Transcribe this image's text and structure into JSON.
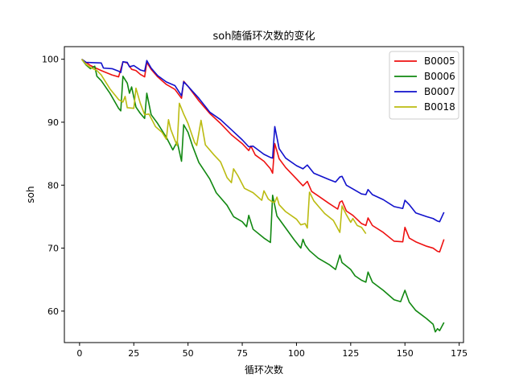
{
  "chart_data": {
    "type": "line",
    "title": "soh随循环次数的变化",
    "xlabel": "循环次数",
    "ylabel": "soh",
    "xlim": [
      -7,
      177
    ],
    "ylim": [
      55,
      102
    ],
    "xticks": [
      0,
      25,
      50,
      75,
      100,
      125,
      150,
      175
    ],
    "yticks": [
      60,
      70,
      80,
      90,
      100
    ],
    "grid": false,
    "legend_position": "top-right",
    "series": [
      {
        "name": "B0005",
        "color": "#ee1111",
        "points": [
          [
            1,
            100
          ],
          [
            5,
            99
          ],
          [
            10,
            98.2
          ],
          [
            15,
            97.5
          ],
          [
            18,
            97.2
          ],
          [
            20,
            99.6
          ],
          [
            22,
            99.4
          ],
          [
            24,
            98.4
          ],
          [
            26,
            98.2
          ],
          [
            28,
            97.6
          ],
          [
            30,
            97.2
          ],
          [
            31,
            99.5
          ],
          [
            33,
            98.4
          ],
          [
            36,
            97.2
          ],
          [
            40,
            96
          ],
          [
            44,
            95.2
          ],
          [
            47,
            93.8
          ],
          [
            48,
            96.5
          ],
          [
            50,
            95.7
          ],
          [
            55,
            93.4
          ],
          [
            60,
            91.4
          ],
          [
            65,
            89.8
          ],
          [
            70,
            88
          ],
          [
            75,
            86.6
          ],
          [
            78,
            85.5
          ],
          [
            79,
            86.2
          ],
          [
            81,
            84.8
          ],
          [
            85,
            83.8
          ],
          [
            88,
            82.6
          ],
          [
            89,
            81.9
          ],
          [
            90,
            86.6
          ],
          [
            92,
            84.2
          ],
          [
            95,
            82.8
          ],
          [
            100,
            81
          ],
          [
            103,
            79.9
          ],
          [
            105,
            80.6
          ],
          [
            107,
            79
          ],
          [
            110,
            78.3
          ],
          [
            115,
            77.1
          ],
          [
            119,
            76.2
          ],
          [
            120,
            77.3
          ],
          [
            121,
            77.5
          ],
          [
            123,
            75.9
          ],
          [
            126,
            75.2
          ],
          [
            130,
            73.9
          ],
          [
            132,
            73.6
          ],
          [
            133,
            74.8
          ],
          [
            135,
            73.6
          ],
          [
            140,
            72.5
          ],
          [
            145,
            71.1
          ],
          [
            149,
            71
          ],
          [
            150,
            73.3
          ],
          [
            152,
            71.6
          ],
          [
            155,
            71
          ],
          [
            160,
            70.3
          ],
          [
            163,
            70
          ],
          [
            165,
            69.5
          ],
          [
            166,
            69.4
          ],
          [
            168,
            71.4
          ]
        ]
      },
      {
        "name": "B0006",
        "color": "#118811",
        "points": [
          [
            1,
            100
          ],
          [
            3,
            99.1
          ],
          [
            5,
            98.5
          ],
          [
            7,
            98.9
          ],
          [
            8,
            97.3
          ],
          [
            10,
            96.6
          ],
          [
            14,
            94.6
          ],
          [
            18,
            92.2
          ],
          [
            19,
            91.8
          ],
          [
            20,
            97.3
          ],
          [
            22,
            96.2
          ],
          [
            23,
            94.6
          ],
          [
            24,
            95.6
          ],
          [
            26,
            92.4
          ],
          [
            28,
            91.4
          ],
          [
            30,
            90.6
          ],
          [
            31,
            94.6
          ],
          [
            33,
            91.2
          ],
          [
            36,
            89.8
          ],
          [
            40,
            87.6
          ],
          [
            43,
            85.6
          ],
          [
            45,
            86.9
          ],
          [
            47,
            83.8
          ],
          [
            48,
            89.6
          ],
          [
            50,
            88.4
          ],
          [
            52,
            86.3
          ],
          [
            55,
            83.6
          ],
          [
            60,
            81
          ],
          [
            63,
            78.8
          ],
          [
            68,
            76.8
          ],
          [
            71,
            75
          ],
          [
            75,
            74.2
          ],
          [
            77,
            73.4
          ],
          [
            78,
            75.2
          ],
          [
            80,
            73
          ],
          [
            85,
            71.6
          ],
          [
            88,
            70.9
          ],
          [
            89,
            78.4
          ],
          [
            91,
            75.1
          ],
          [
            95,
            73.2
          ],
          [
            99,
            71.3
          ],
          [
            102,
            70
          ],
          [
            103,
            71.4
          ],
          [
            104,
            70.5
          ],
          [
            106,
            69.6
          ],
          [
            110,
            68.4
          ],
          [
            115,
            67.4
          ],
          [
            118,
            66.6
          ],
          [
            120,
            68.9
          ],
          [
            121,
            67.7
          ],
          [
            125,
            66.6
          ],
          [
            127,
            65.6
          ],
          [
            130,
            64.9
          ],
          [
            132,
            64.6
          ],
          [
            133,
            66.2
          ],
          [
            135,
            64.6
          ],
          [
            140,
            63.3
          ],
          [
            145,
            61.8
          ],
          [
            148,
            61.5
          ],
          [
            150,
            63.3
          ],
          [
            152,
            61.4
          ],
          [
            155,
            60.1
          ],
          [
            160,
            58.8
          ],
          [
            163,
            57.9
          ],
          [
            164,
            56.7
          ],
          [
            165,
            57.2
          ],
          [
            166,
            56.9
          ],
          [
            168,
            58.2
          ]
        ]
      },
      {
        "name": "B0007",
        "color": "#1111cc",
        "points": [
          [
            1,
            100
          ],
          [
            3,
            99.5
          ],
          [
            10,
            99.4
          ],
          [
            11,
            98.6
          ],
          [
            15,
            98.5
          ],
          [
            18,
            98.1
          ],
          [
            19,
            97.9
          ],
          [
            20,
            99.6
          ],
          [
            22,
            99.5
          ],
          [
            23,
            98.8
          ],
          [
            25,
            99
          ],
          [
            28,
            98.3
          ],
          [
            30,
            98.1
          ],
          [
            31,
            99.8
          ],
          [
            33,
            98.6
          ],
          [
            36,
            97.4
          ],
          [
            40,
            96.4
          ],
          [
            44,
            95.8
          ],
          [
            47,
            94.2
          ],
          [
            48,
            96.4
          ],
          [
            50,
            95.7
          ],
          [
            55,
            93.8
          ],
          [
            60,
            91.6
          ],
          [
            65,
            90.4
          ],
          [
            70,
            88.8
          ],
          [
            75,
            87.2
          ],
          [
            78,
            86.1
          ],
          [
            80,
            86.2
          ],
          [
            85,
            84.9
          ],
          [
            88,
            84.4
          ],
          [
            89,
            84.3
          ],
          [
            90,
            89.3
          ],
          [
            92,
            85.8
          ],
          [
            95,
            84.3
          ],
          [
            100,
            83.1
          ],
          [
            103,
            82.6
          ],
          [
            105,
            83.2
          ],
          [
            108,
            81.9
          ],
          [
            115,
            80.9
          ],
          [
            118,
            80.5
          ],
          [
            120,
            81.3
          ],
          [
            121,
            81.4
          ],
          [
            123,
            80
          ],
          [
            126,
            79.4
          ],
          [
            130,
            78.6
          ],
          [
            132,
            78.5
          ],
          [
            133,
            79.3
          ],
          [
            135,
            78.5
          ],
          [
            140,
            77.7
          ],
          [
            145,
            76.6
          ],
          [
            149,
            76.3
          ],
          [
            150,
            77.6
          ],
          [
            152,
            76.9
          ],
          [
            155,
            75.6
          ],
          [
            160,
            75
          ],
          [
            163,
            74.7
          ],
          [
            165,
            74.3
          ],
          [
            166,
            74.2
          ],
          [
            168,
            75.7
          ]
        ]
      },
      {
        "name": "B0018",
        "color": "#bbbb11",
        "points": [
          [
            1,
            100
          ],
          [
            3,
            99.2
          ],
          [
            5,
            98.7
          ],
          [
            8,
            98.2
          ],
          [
            10,
            97.5
          ],
          [
            14,
            95.3
          ],
          [
            18,
            93.6
          ],
          [
            20,
            93.2
          ],
          [
            21,
            94.1
          ],
          [
            22,
            92.3
          ],
          [
            25,
            92.2
          ],
          [
            26,
            95.4
          ],
          [
            28,
            93
          ],
          [
            30,
            91.2
          ],
          [
            32,
            91.3
          ],
          [
            35,
            89.3
          ],
          [
            38,
            88.4
          ],
          [
            40,
            87.3
          ],
          [
            41,
            90.4
          ],
          [
            42,
            88.9
          ],
          [
            44,
            87.1
          ],
          [
            45,
            86.3
          ],
          [
            46,
            93
          ],
          [
            48,
            91.3
          ],
          [
            50,
            89.8
          ],
          [
            53,
            86.8
          ],
          [
            54,
            86.3
          ],
          [
            56,
            90.3
          ],
          [
            58,
            86.4
          ],
          [
            62,
            84.8
          ],
          [
            65,
            83.7
          ],
          [
            68,
            81.2
          ],
          [
            70,
            80.4
          ],
          [
            71,
            82.6
          ],
          [
            73,
            81.5
          ],
          [
            76,
            79.5
          ],
          [
            80,
            78.8
          ],
          [
            84,
            77.6
          ],
          [
            85,
            79.1
          ],
          [
            87,
            77.8
          ],
          [
            89,
            77.3
          ],
          [
            90,
            77.3
          ],
          [
            91,
            78.1
          ],
          [
            92,
            76.9
          ],
          [
            95,
            75.8
          ],
          [
            100,
            74.6
          ],
          [
            102,
            73.7
          ],
          [
            104,
            73.9
          ],
          [
            105,
            73.2
          ],
          [
            106,
            78.9
          ],
          [
            108,
            77.5
          ],
          [
            110,
            76.7
          ],
          [
            113,
            75.5
          ],
          [
            117,
            74.4
          ],
          [
            120,
            72.5
          ],
          [
            121,
            76.7
          ],
          [
            123,
            75.3
          ],
          [
            125,
            74.1
          ],
          [
            126,
            74.7
          ],
          [
            128,
            73.6
          ],
          [
            130,
            73.3
          ],
          [
            132,
            72.3
          ]
        ]
      }
    ]
  }
}
